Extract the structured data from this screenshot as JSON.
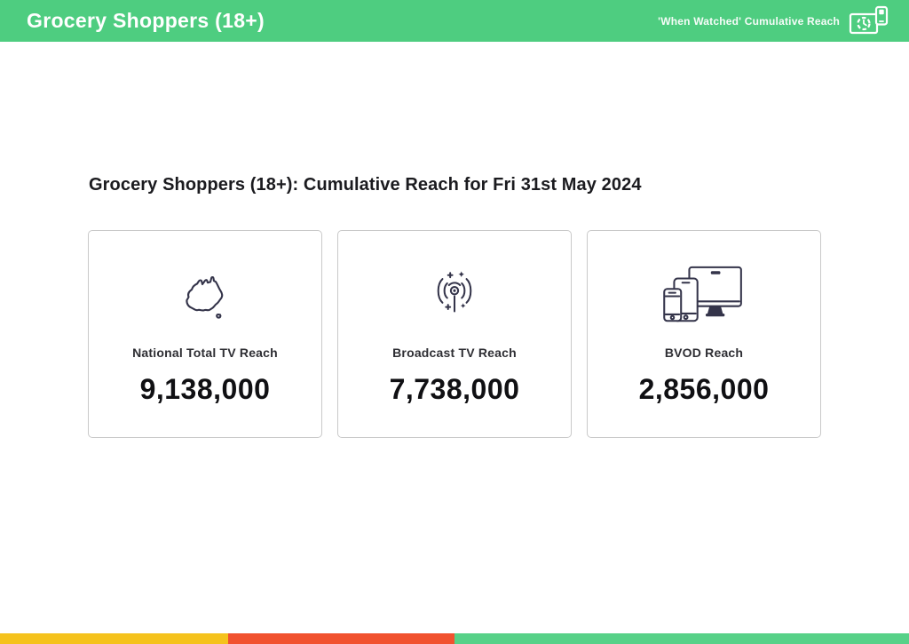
{
  "header": {
    "title": "Grocery Shoppers (18+)",
    "subtitle_right": "'When Watched' Cumulative Reach",
    "icon": "tv-clock-phone-icon",
    "bg_color": "#4ECD80",
    "text_color": "#FFFFFF"
  },
  "main": {
    "heading": "Grocery Shoppers (18+): Cumulative Reach for Fri 31st May 2024",
    "cards": [
      {
        "icon": "australia-map-icon",
        "label": "National Total TV Reach",
        "value": "9,138,000"
      },
      {
        "icon": "broadcast-antenna-icon",
        "label": "Broadcast TV Reach",
        "value": "7,738,000"
      },
      {
        "icon": "multi-device-icon",
        "label": "BVOD Reach",
        "value": "2,856,000"
      }
    ]
  },
  "footer": {
    "stripes": [
      {
        "name": "yellow",
        "color": "#F5C21C",
        "width_pct": 25.1
      },
      {
        "name": "red",
        "color": "#F1522F",
        "width_pct": 24.9
      },
      {
        "name": "green",
        "color": "#57D188",
        "width_pct": 50.0
      }
    ]
  }
}
